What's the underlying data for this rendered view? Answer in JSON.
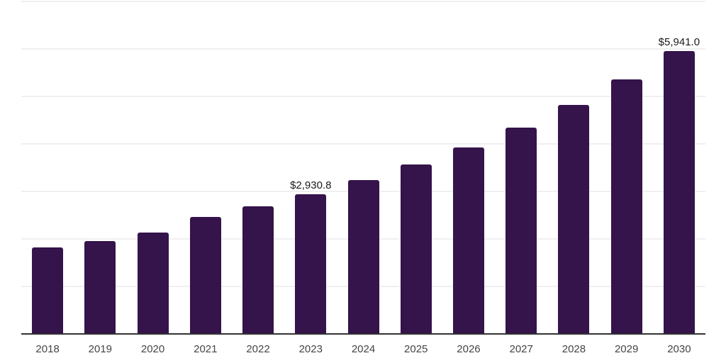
{
  "chart_data": {
    "type": "bar",
    "title": "",
    "xlabel": "",
    "ylabel": "",
    "categories": [
      "2018",
      "2019",
      "2020",
      "2021",
      "2022",
      "2023",
      "2024",
      "2025",
      "2026",
      "2027",
      "2028",
      "2029",
      "2030"
    ],
    "values": [
      1800,
      1940,
      2120,
      2450,
      2670,
      2930.8,
      3220,
      3550,
      3910,
      4330,
      4800,
      5340,
      5941
    ],
    "value_labels": {
      "2023": "$2,930.8",
      "2030": "$5,941.0"
    },
    "ylim": [
      0,
      7000
    ],
    "gridline_step": 1000,
    "grid": "horizontal",
    "legend": "none",
    "y_axis_tick_labels": "none",
    "colors": {
      "bar": "#35134B",
      "axis_line": "#333333",
      "gridline": "#f0f0f3",
      "x_tick_label": "#444444",
      "data_label": "#1a1a1a",
      "background": "#ffffff"
    }
  }
}
